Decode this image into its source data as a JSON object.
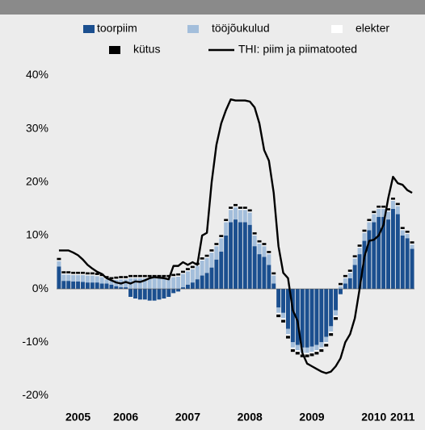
{
  "chart_data": {
    "type": "bar",
    "stacked": true,
    "categories": [
      null,
      null,
      null,
      null,
      "2005",
      null,
      null,
      null,
      null,
      null,
      null,
      null,
      null,
      null,
      "2006",
      null,
      null,
      null,
      null,
      null,
      null,
      null,
      null,
      null,
      null,
      null,
      null,
      "2007",
      null,
      null,
      null,
      null,
      null,
      null,
      null,
      null,
      null,
      null,
      null,
      null,
      "2008",
      null,
      null,
      null,
      null,
      null,
      null,
      null,
      null,
      null,
      null,
      null,
      null,
      "2009",
      null,
      null,
      null,
      null,
      null,
      null,
      null,
      null,
      null,
      null,
      null,
      null,
      "2010",
      null,
      null,
      null,
      null,
      null,
      "2011",
      null,
      null
    ],
    "series": [
      {
        "name": "toorpiim",
        "color": "#1b4f8f",
        "values": [
          4.2,
          1.5,
          1.5,
          1.4,
          1.4,
          1.3,
          1.2,
          1.2,
          1.2,
          1.0,
          1.0,
          0.8,
          0.5,
          0.3,
          0.3,
          -1.5,
          -1.8,
          -2.0,
          -2.0,
          -2.2,
          -2.2,
          -2.0,
          -1.8,
          -1.5,
          -0.8,
          -0.5,
          0.3,
          0.8,
          1.2,
          1.8,
          2.5,
          3.0,
          4.0,
          5.5,
          7.0,
          10.0,
          12.5,
          13.0,
          12.5,
          12.5,
          12.0,
          8.0,
          6.5,
          6.0,
          4.5,
          1.0,
          -3.5,
          -4.5,
          -7.5,
          -10.0,
          -10.5,
          -11.0,
          -11.0,
          -10.8,
          -10.5,
          -10.0,
          -9.0,
          -7.0,
          -4.0,
          -1.0,
          1.0,
          2.0,
          4.5,
          6.5,
          9.0,
          11.0,
          12.5,
          13.5,
          13.5,
          13.0,
          15.0,
          14.0,
          10.0,
          9.5,
          7.5
        ]
      },
      {
        "name": "tööjõukulud",
        "color": "#a3bedb",
        "values": [
          1.0,
          1.2,
          1.2,
          1.2,
          1.2,
          1.3,
          1.3,
          1.3,
          1.2,
          1.2,
          0.8,
          0.8,
          1.2,
          1.5,
          1.5,
          2.0,
          2.0,
          2.0,
          2.0,
          2.0,
          2.0,
          2.0,
          2.0,
          2.0,
          2.2,
          2.3,
          2.5,
          2.5,
          2.5,
          2.5,
          2.8,
          2.8,
          2.8,
          2.5,
          2.5,
          2.5,
          2.3,
          2.3,
          2.3,
          2.3,
          2.3,
          2.0,
          2.0,
          2.0,
          2.0,
          1.5,
          -1.0,
          -1.0,
          -1.0,
          -1.0,
          -1.0,
          -1.0,
          -1.0,
          -1.0,
          -1.0,
          -1.0,
          -1.0,
          -1.0,
          -1.0,
          0.5,
          1.0,
          1.0,
          1.2,
          1.2,
          1.5,
          1.5,
          1.5,
          1.5,
          1.5,
          1.5,
          1.5,
          1.5,
          1.0,
          0.8,
          0.8
        ]
      },
      {
        "name": "elekter",
        "color": "#ffffff",
        "values": [
          0.2,
          0.2,
          0.2,
          0.2,
          0.2,
          0.2,
          0.2,
          0.2,
          0.2,
          0.2,
          0.2,
          0.2,
          0.2,
          0.2,
          0.2,
          0.2,
          0.2,
          0.2,
          0.2,
          0.2,
          0.2,
          0.2,
          0.2,
          0.2,
          0.2,
          0.2,
          0.2,
          0.2,
          0.2,
          0.2,
          0.2,
          0.2,
          0.2,
          0.2,
          0.2,
          0.2,
          0.2,
          0.2,
          0.2,
          0.2,
          0.2,
          0.2,
          0.2,
          0.2,
          0.2,
          0.2,
          -0.3,
          -0.3,
          -0.3,
          -0.3,
          -0.3,
          -0.3,
          -0.3,
          -0.3,
          -0.3,
          -0.3,
          -0.3,
          -0.3,
          -0.3,
          0.2,
          0.2,
          0.2,
          0.2,
          0.2,
          0.2,
          0.2,
          0.2,
          0.2,
          0.2,
          0.2,
          0.2,
          0.2,
          0.2,
          0.2,
          0.2
        ]
      },
      {
        "name": "kütus",
        "color": "#000000",
        "values": [
          0.4,
          0.4,
          0.4,
          0.4,
          0.4,
          0.4,
          0.4,
          0.4,
          0.4,
          0.4,
          0.4,
          0.4,
          0.4,
          0.4,
          0.4,
          0.4,
          0.4,
          0.4,
          0.4,
          0.4,
          0.4,
          0.4,
          0.4,
          0.4,
          0.4,
          0.4,
          0.4,
          0.4,
          0.4,
          0.4,
          0.4,
          0.4,
          0.4,
          0.4,
          0.4,
          0.4,
          0.4,
          0.4,
          0.4,
          0.4,
          0.4,
          0.4,
          0.4,
          0.4,
          0.4,
          0.4,
          -0.5,
          -0.5,
          -0.5,
          -0.5,
          -0.5,
          -0.5,
          -0.5,
          -0.5,
          -0.5,
          -0.5,
          -0.5,
          -0.5,
          -0.5,
          0.4,
          0.4,
          0.4,
          0.4,
          0.4,
          0.4,
          0.4,
          0.4,
          0.4,
          0.4,
          0.4,
          0.4,
          0.4,
          0.4,
          0.4,
          0.4
        ]
      },
      {
        "name": "THI: piim ja piimatooted",
        "type": "line",
        "color": "#000000",
        "values": [
          7.2,
          7.2,
          7.2,
          6.8,
          6.3,
          5.5,
          4.5,
          3.8,
          3.2,
          2.8,
          2.0,
          1.6,
          1.2,
          1.0,
          1.3,
          1.0,
          1.4,
          1.3,
          1.6,
          2.0,
          2.2,
          2.1,
          2.0,
          1.8,
          4.3,
          4.3,
          5.0,
          4.5,
          5.0,
          4.5,
          10.0,
          10.5,
          20.0,
          27.0,
          31.0,
          33.5,
          35.5,
          35.3,
          35.3,
          35.3,
          35.1,
          34.0,
          31.0,
          26.0,
          24.0,
          18.0,
          8.0,
          3.0,
          2.0,
          -4.0,
          -6.0,
          -12.0,
          -14.0,
          -14.5,
          -15.0,
          -15.5,
          -15.8,
          -15.5,
          -14.5,
          -13.0,
          -10.0,
          -8.5,
          -5.5,
          0.0,
          6.0,
          9.0,
          9.2,
          10.0,
          12.0,
          17.0,
          21.0,
          19.8,
          19.5,
          18.5,
          18.0
        ]
      }
    ],
    "ylim": [
      -22,
      44
    ],
    "yticks": [
      {
        "value": -20,
        "label": "-20%"
      },
      {
        "value": -10,
        "label": "-10%"
      },
      {
        "value": 0,
        "label": "0%"
      },
      {
        "value": 10,
        "label": "10%"
      },
      {
        "value": 20,
        "label": "20%"
      },
      {
        "value": 30,
        "label": "30%"
      },
      {
        "value": 40,
        "label": "40%"
      }
    ],
    "grid": false
  }
}
